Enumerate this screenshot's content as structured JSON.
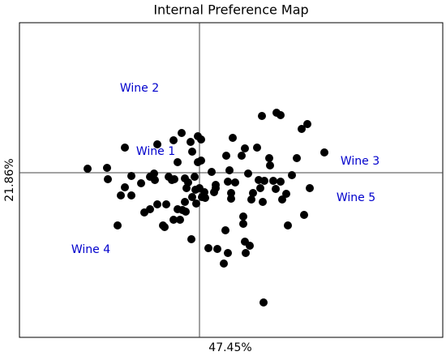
{
  "chart_data": {
    "type": "scatter",
    "title": "Internal Preference Map",
    "x_label": "47.45%",
    "y_label": "21.86%",
    "xlim": [
      -2.22,
      3.0
    ],
    "ylim": [
      -2.03,
      1.85
    ],
    "color": "#000000",
    "annotation_color": "#0000cc",
    "annotations": [
      "Wine 1",
      "Wine 2",
      "Wine 3",
      "Wine 4",
      "Wine 5"
    ],
    "x": [
      -1.38,
      -1.14,
      -1.13,
      -0.92,
      -0.84,
      -0.84,
      -0.97,
      -0.92,
      -0.72,
      -1.01,
      -0.68,
      -0.61,
      -0.61,
      -0.56,
      -0.55,
      -0.52,
      -0.52,
      -0.45,
      -0.43,
      -0.41,
      -0.38,
      -0.34,
      -0.32,
      -0.31,
      -0.32,
      -0.27,
      -0.27,
      -0.24,
      -0.22,
      -0.21,
      -0.18,
      -0.18,
      -0.17,
      -0.16,
      -0.14,
      -0.11,
      -0.09,
      -0.1,
      -0.09,
      -0.06,
      -0.05,
      -0.04,
      -0.02,
      -0.02,
      0,
      0.02,
      0.02,
      0.03,
      0.06,
      0.07,
      0.11,
      0.15,
      0.18,
      0.2,
      0.2,
      0.22,
      0.32,
      0.3,
      0.33,
      0.35,
      0.35,
      0.37,
      0.39,
      0.39,
      0.41,
      0.44,
      0.52,
      0.54,
      0.54,
      0.56,
      0.56,
      0.57,
      0.6,
      0.62,
      0.64,
      0.66,
      0.71,
      0.73,
      0.75,
      0.77,
      0.78,
      0.79,
      0.8,
      0.86,
      0.87,
      0.91,
      0.95,
      0.94,
      1.0,
      1.0,
      1.02,
      1.07,
      1.09,
      1.14,
      1.2,
      1.26,
      1.29,
      1.33,
      1.36,
      1.54
    ],
    "values": [
      0.05,
      0.06,
      -0.08,
      0.31,
      -0.04,
      -0.28,
      -0.28,
      -0.18,
      -0.13,
      -0.65,
      -0.49,
      -0.45,
      -0.05,
      -0.01,
      -0.09,
      -0.39,
      0.35,
      -0.65,
      -0.67,
      -0.39,
      -0.05,
      -0.09,
      0.4,
      -0.08,
      -0.58,
      -0.45,
      0.13,
      -0.58,
      0.49,
      -0.46,
      -0.36,
      -0.07,
      -0.48,
      -0.19,
      -0.12,
      0.38,
      0.26,
      -0.82,
      -0.3,
      -0.05,
      -0.21,
      -0.38,
      0.45,
      0.13,
      -0.19,
      0.41,
      0.15,
      -0.3,
      -0.24,
      -0.31,
      -0.93,
      0.01,
      -0.24,
      -0.19,
      -0.15,
      -0.94,
      -0.71,
      -1.12,
      0.21,
      -0.99,
      -0.11,
      0.03,
      -0.25,
      -0.32,
      0.43,
      -0.12,
      0.21,
      -0.54,
      -0.63,
      0.3,
      -0.85,
      -0.99,
      -0.01,
      -0.9,
      -0.33,
      -0.25,
      0.31,
      -0.09,
      -0.19,
      0.7,
      -0.36,
      -1.6,
      -0.1,
      0.18,
      0.09,
      -0.1,
      0.74,
      -0.2,
      0.71,
      -0.11,
      -0.33,
      -0.26,
      -0.65,
      -0.03,
      0.18,
      0.54,
      -0.52,
      0.6,
      -0.19,
      0.25
    ]
  }
}
